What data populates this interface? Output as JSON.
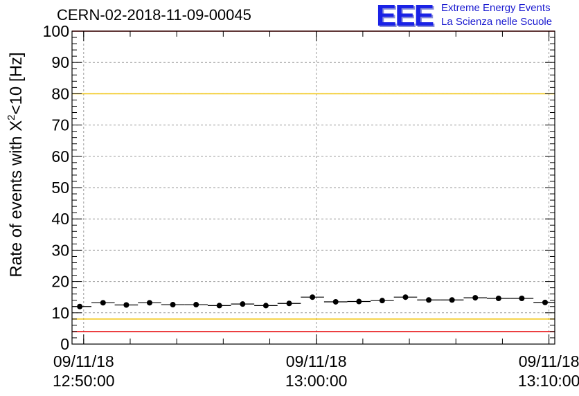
{
  "header": {
    "run_title": "CERN-02-2018-11-09-00045",
    "logo_mark": "EEE",
    "logo_line1": "Extreme Energy Events",
    "logo_line2": "La Scienza nelle Scuole"
  },
  "chart_data": {
    "type": "scatter",
    "title": "CERN-02-2018-11-09-00045",
    "xlabel": "",
    "ylabel_parts": {
      "pre": "Rate of events with X",
      "sup": "2",
      "post": "<10 [Hz]"
    },
    "ylim": [
      0,
      100
    ],
    "y_ticks": [
      0,
      10,
      20,
      30,
      40,
      50,
      60,
      70,
      80,
      90,
      100
    ],
    "x_range": [
      "12:49:30",
      "13:10:15"
    ],
    "x_major_ticks": [
      {
        "time": "12:50:00",
        "date": "09/11/18",
        "label": "12:50:00"
      },
      {
        "time": "13:00:00",
        "date": "09/11/18",
        "label": "13:00:00"
      },
      {
        "time": "13:10:00",
        "date": "09/11/18",
        "label": "13:10:00"
      }
    ],
    "x_minor_tick_step_seconds": 120,
    "grid": true,
    "reference_lines": [
      {
        "value": 100,
        "color": "#e8191b"
      },
      {
        "value": 80,
        "color": "#f2c718"
      },
      {
        "value": 8,
        "color": "#f2c718"
      },
      {
        "value": 4,
        "color": "#e8191b"
      }
    ],
    "bin_width_seconds": 60,
    "points": [
      {
        "x": "12:49:50",
        "y": 12.0
      },
      {
        "x": "12:50:50",
        "y": 13.2
      },
      {
        "x": "12:51:50",
        "y": 12.5
      },
      {
        "x": "12:52:50",
        "y": 13.2
      },
      {
        "x": "12:53:50",
        "y": 12.6
      },
      {
        "x": "12:54:50",
        "y": 12.6
      },
      {
        "x": "12:55:50",
        "y": 12.3
      },
      {
        "x": "12:56:50",
        "y": 12.8
      },
      {
        "x": "12:57:50",
        "y": 12.3
      },
      {
        "x": "12:58:50",
        "y": 13.0
      },
      {
        "x": "12:59:50",
        "y": 15.0
      },
      {
        "x": "13:00:50",
        "y": 13.5
      },
      {
        "x": "13:01:50",
        "y": 13.6
      },
      {
        "x": "13:02:50",
        "y": 13.9
      },
      {
        "x": "13:03:50",
        "y": 15.0
      },
      {
        "x": "13:04:50",
        "y": 14.1
      },
      {
        "x": "13:05:50",
        "y": 14.1
      },
      {
        "x": "13:06:50",
        "y": 14.8
      },
      {
        "x": "13:07:50",
        "y": 14.6
      },
      {
        "x": "13:08:50",
        "y": 14.6
      },
      {
        "x": "13:09:50",
        "y": 13.3
      }
    ],
    "colors": {
      "marker": "#000000",
      "grid": "#9a9a9a",
      "frame": "#000000"
    }
  }
}
